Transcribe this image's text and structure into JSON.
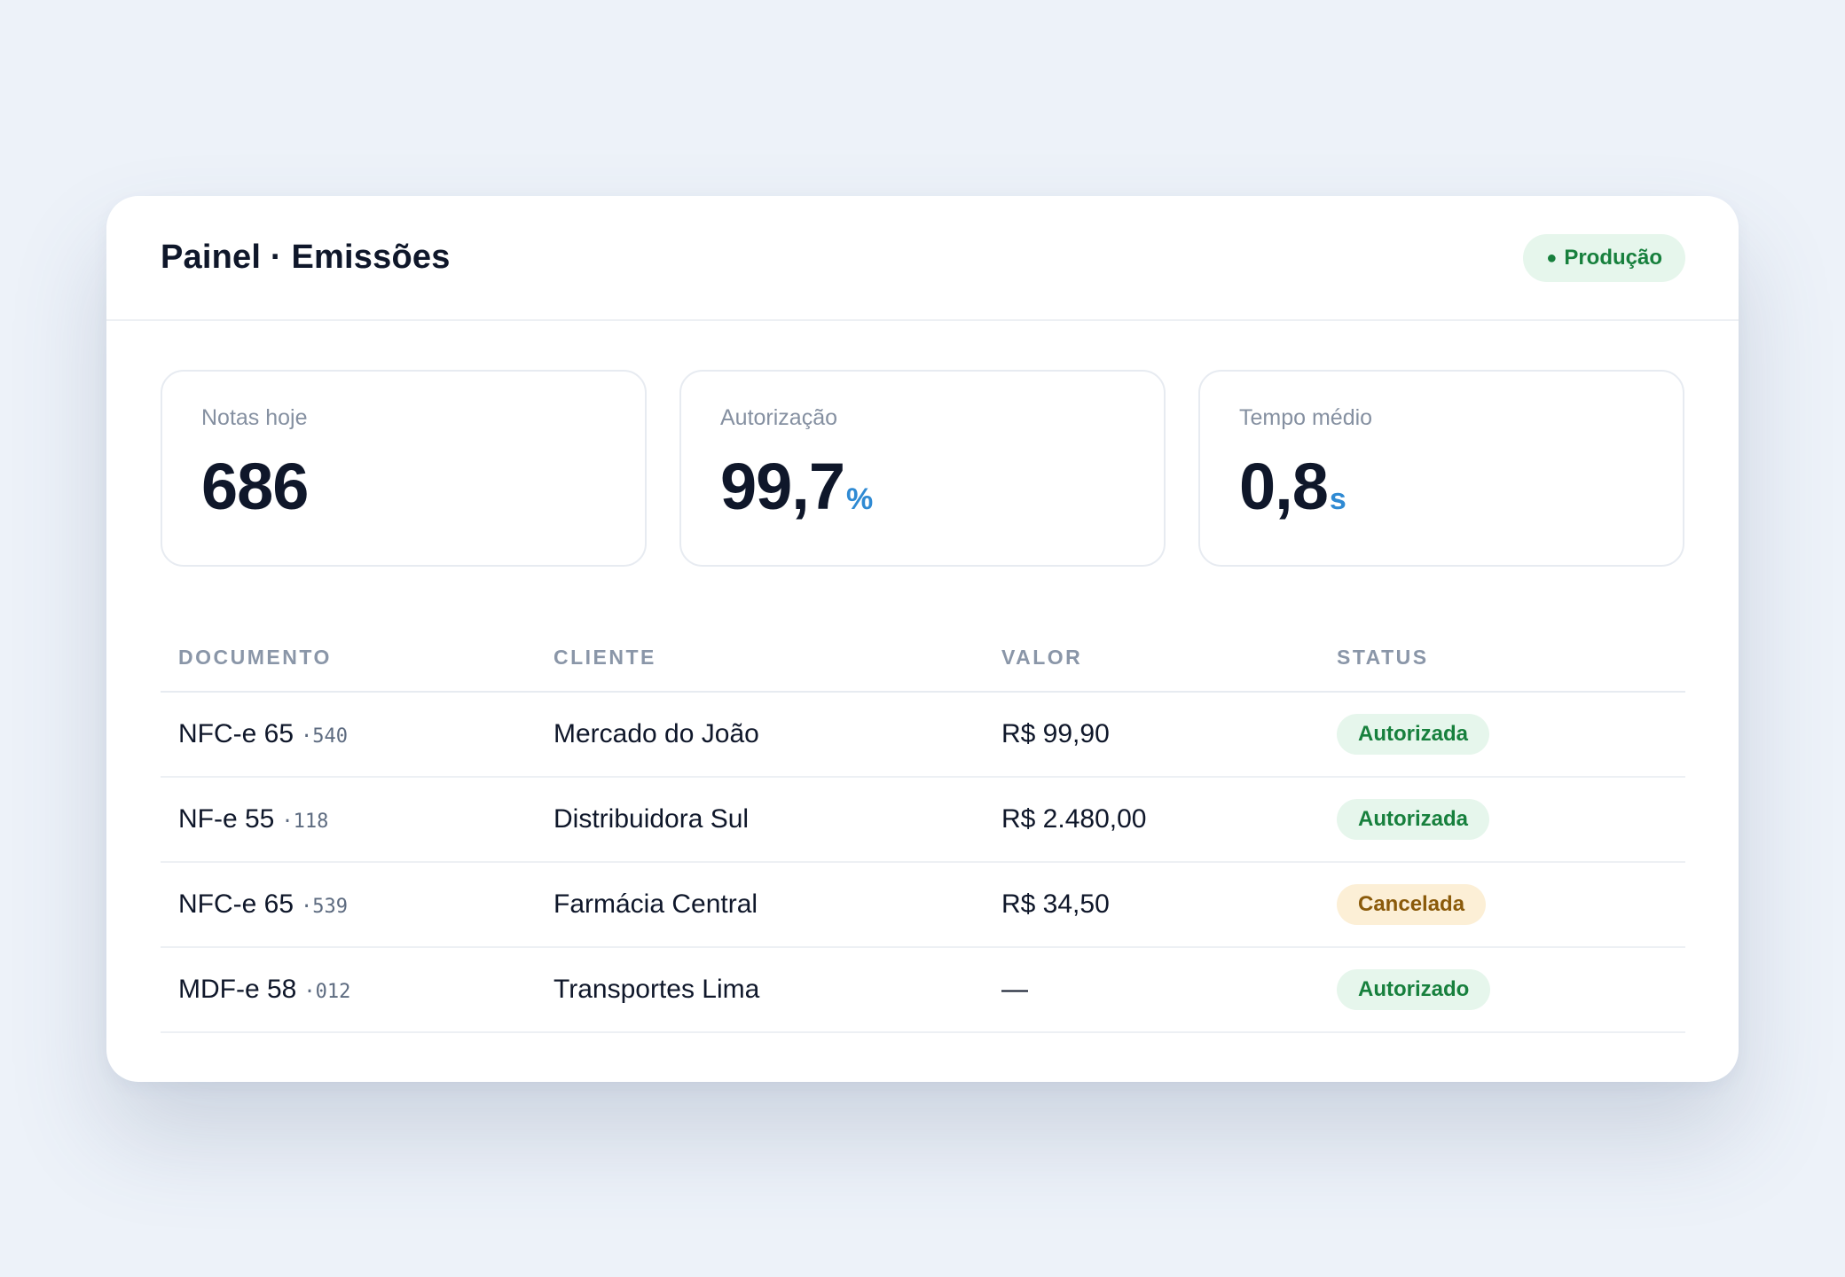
{
  "header": {
    "title": "Painel · Emissões",
    "environment_dot": "●",
    "environment": "Produção"
  },
  "stats": [
    {
      "label": "Notas hoje",
      "value": "686",
      "unit": ""
    },
    {
      "label": "Autorização",
      "value": "99,7",
      "unit": "%"
    },
    {
      "label": "Tempo médio",
      "value": "0,8",
      "unit": "s"
    }
  ],
  "table": {
    "columns": [
      "DOCUMENTO",
      "CLIENTE",
      "VALOR",
      "STATUS"
    ],
    "rows": [
      {
        "doc": "NFC-e 65",
        "num": "·540",
        "cliente": "Mercado do João",
        "valor": "R$ 99,90",
        "status": "Autorizada",
        "tone": "ok"
      },
      {
        "doc": "NF-e 55",
        "num": "·118",
        "cliente": "Distribuidora Sul",
        "valor": "R$ 2.480,00",
        "status": "Autorizada",
        "tone": "ok"
      },
      {
        "doc": "NFC-e 65",
        "num": "·539",
        "cliente": "Farmácia Central",
        "valor": "R$ 34,50",
        "status": "Cancelada",
        "tone": "warn"
      },
      {
        "doc": "MDF-e 58",
        "num": "·012",
        "cliente": "Transportes Lima",
        "valor": "—",
        "status": "Autorizado",
        "tone": "ok"
      }
    ]
  },
  "colors": {
    "accent": "#2f8ad3",
    "success": "#17803d",
    "success_bg": "#e6f6ec",
    "warning": "#8a5a0a",
    "warning_bg": "#fcefd6"
  }
}
